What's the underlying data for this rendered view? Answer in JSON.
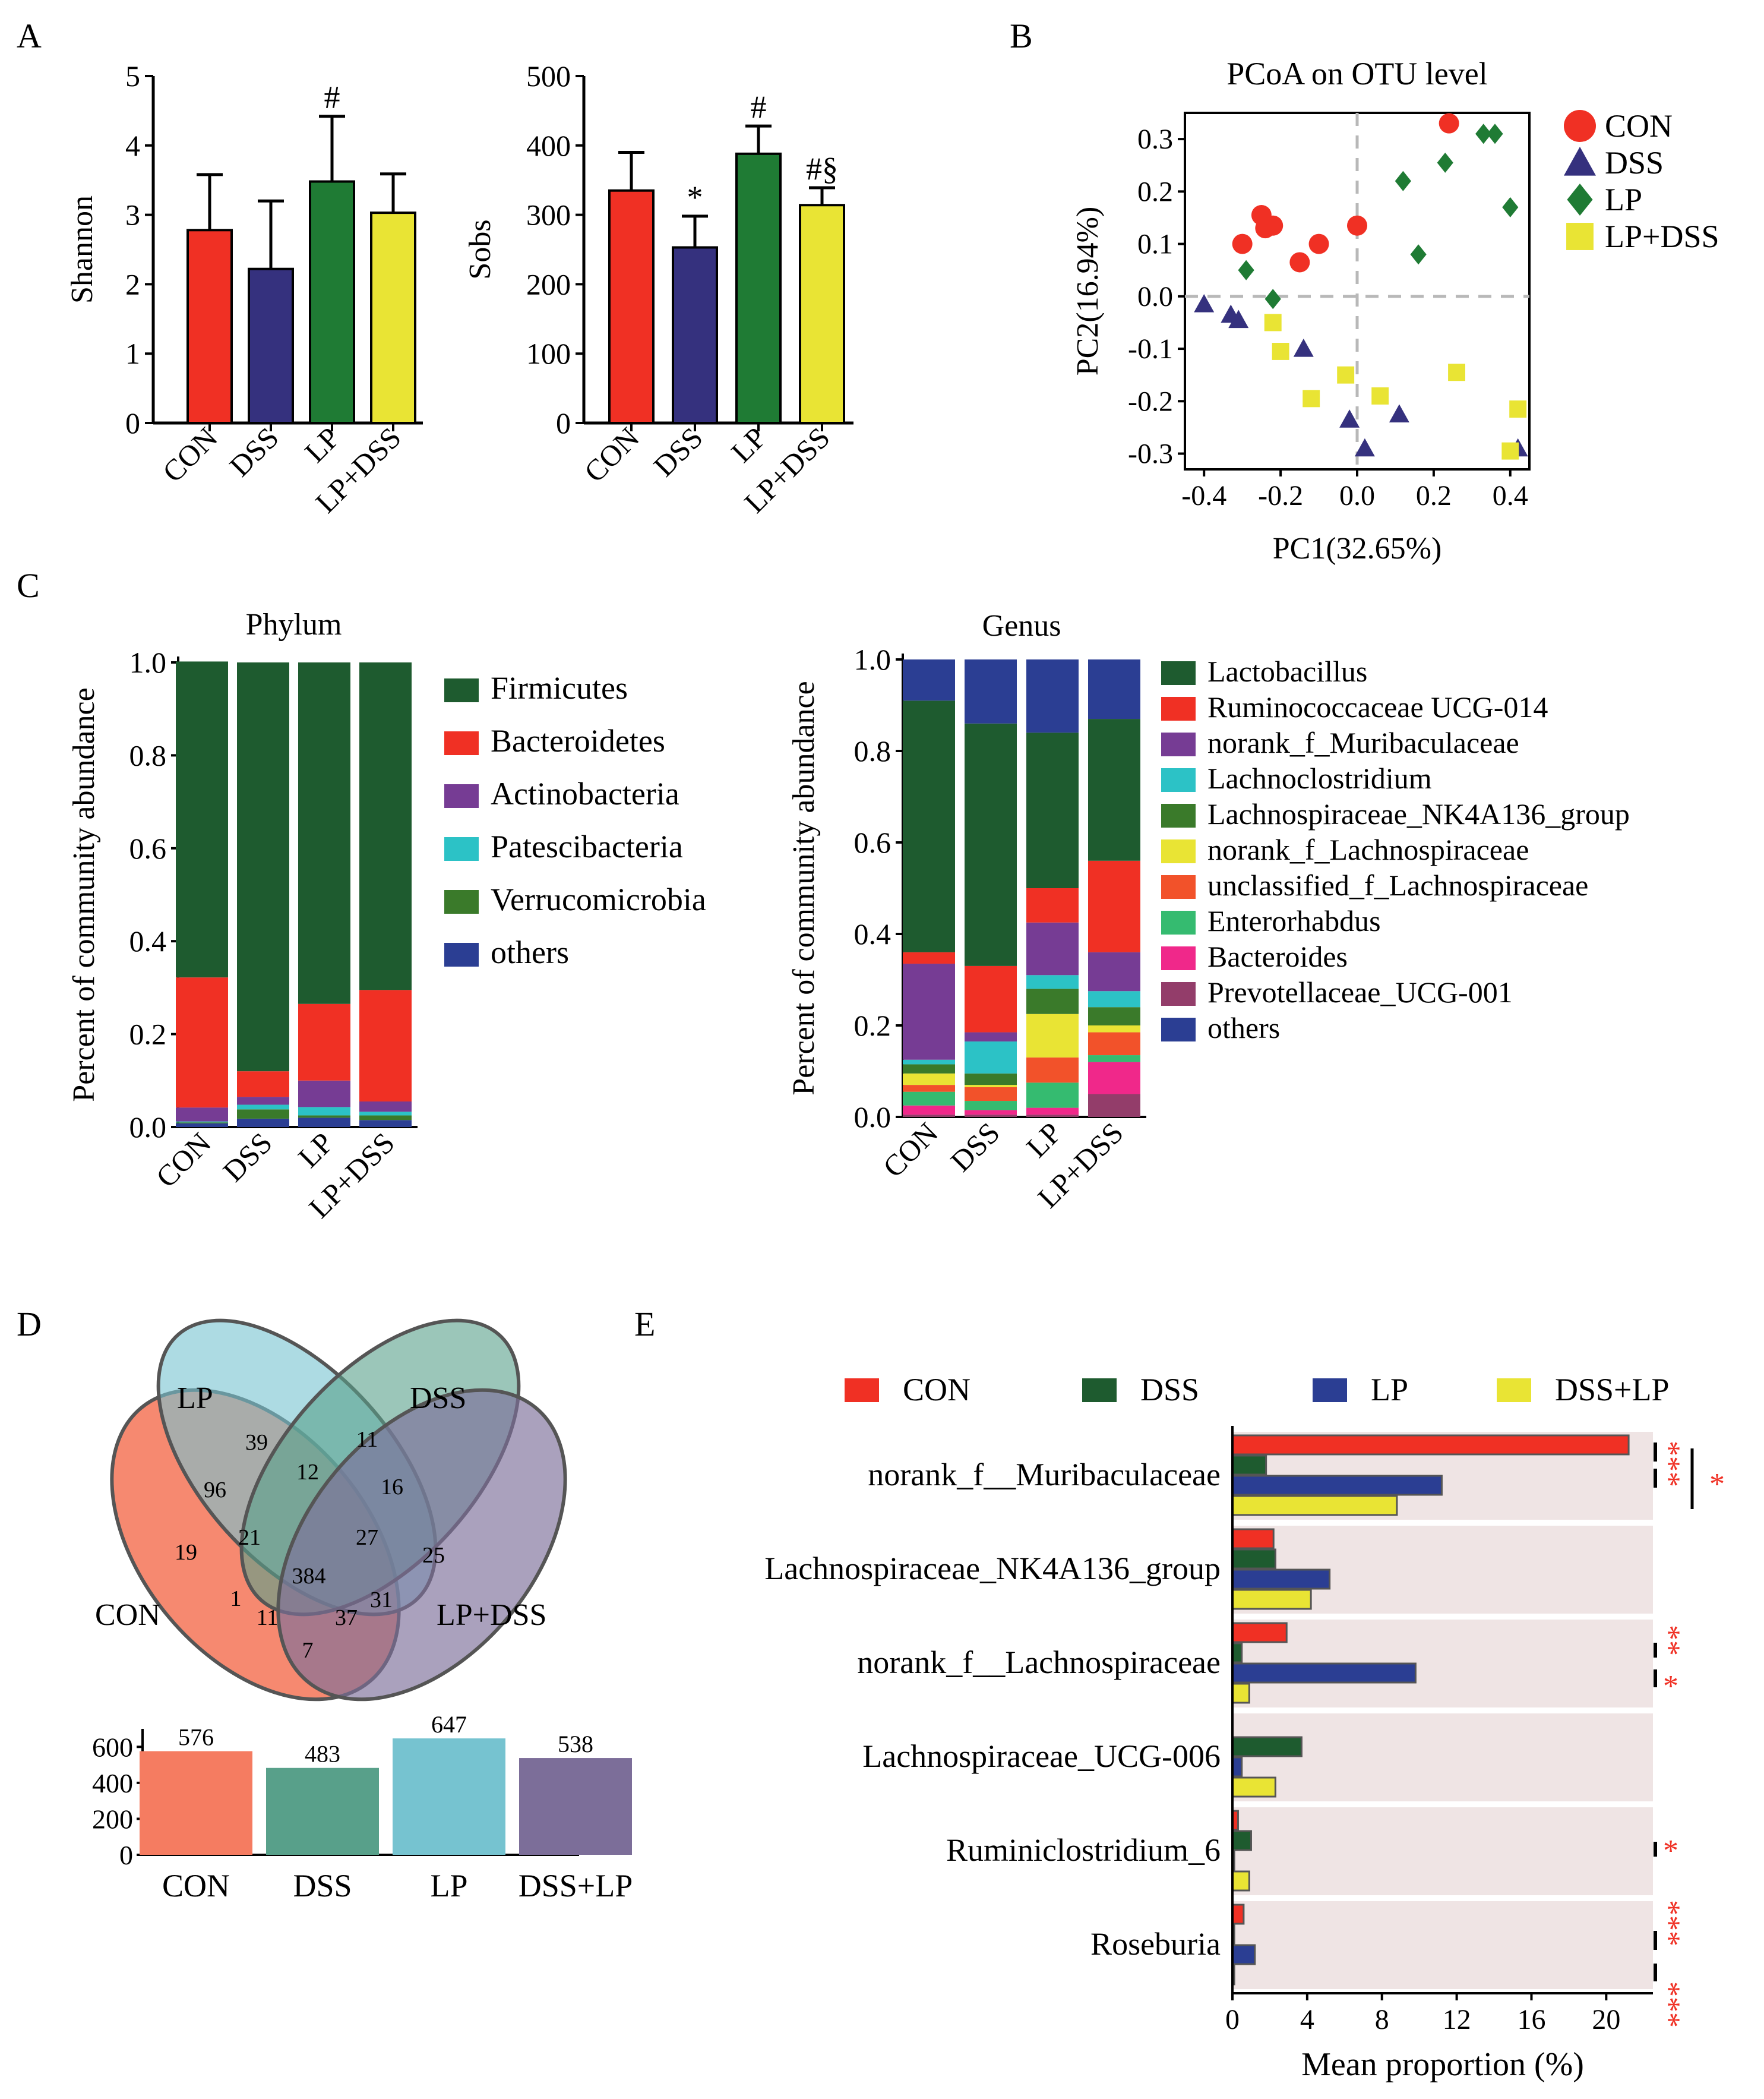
{
  "chart_data": [
    {
      "panel": "A",
      "type": "bar",
      "title": "",
      "xlabel": "",
      "ylabel": "Shannon",
      "ylim": [
        0,
        5
      ],
      "yticks": [
        "0",
        "1",
        "2",
        "3",
        "4",
        "5"
      ],
      "categories": [
        "CON",
        "DSS",
        "LP",
        "LP+DSS"
      ],
      "values": [
        2.78,
        2.22,
        3.48,
        3.03
      ],
      "errors": [
        0.8,
        0.98,
        0.94,
        0.56
      ],
      "annotations": [
        "",
        "",
        "#",
        ""
      ],
      "colors": [
        "#f03024",
        "#35317e",
        "#1f7b34",
        "#e9e434"
      ]
    },
    {
      "panel": "A",
      "type": "bar",
      "title": "",
      "xlabel": "",
      "ylabel": "Sobs",
      "ylim": [
        0,
        500
      ],
      "yticks": [
        "0",
        "100",
        "200",
        "300",
        "400",
        "500"
      ],
      "categories": [
        "CON",
        "DSS",
        "LP",
        "LP+DSS"
      ],
      "values": [
        335,
        253,
        388,
        314
      ],
      "errors": [
        55,
        45,
        40,
        25
      ],
      "annotations": [
        "",
        "*",
        "#",
        "#§"
      ],
      "colors": [
        "#f03024",
        "#35317e",
        "#1f7b34",
        "#e9e434"
      ]
    },
    {
      "panel": "B",
      "type": "scatter",
      "title": "PCoA on OTU level",
      "xlabel": "PC1(32.65%)",
      "ylabel": "PC2(16.94%)",
      "xlim": [
        -0.45,
        0.45
      ],
      "ylim": [
        -0.33,
        0.35
      ],
      "xticks": [
        "-0.4",
        "-0.2",
        "0.0",
        "0.2",
        "0.4"
      ],
      "yticks": [
        "0.3",
        "0.2",
        "0.1",
        "0.0",
        "-0.1",
        "-0.2",
        "-0.3"
      ],
      "legend_position": "right",
      "series": [
        {
          "name": "CON",
          "marker": "circle",
          "color": "#f03024",
          "points": [
            [
              0.24,
              0.33
            ],
            [
              -0.25,
              0.155
            ],
            [
              -0.22,
              0.135
            ],
            [
              -0.24,
              0.13
            ],
            [
              -0.3,
              0.1
            ],
            [
              -0.1,
              0.1
            ],
            [
              -0.15,
              0.065
            ],
            [
              0.0,
              0.135
            ]
          ]
        },
        {
          "name": "DSS",
          "marker": "triangle",
          "color": "#35317e",
          "points": [
            [
              -0.4,
              -0.015
            ],
            [
              -0.33,
              -0.035
            ],
            [
              -0.31,
              -0.045
            ],
            [
              -0.14,
              -0.1
            ],
            [
              -0.02,
              -0.235
            ],
            [
              0.02,
              -0.29
            ],
            [
              0.11,
              -0.225
            ],
            [
              0.42,
              -0.29
            ]
          ]
        },
        {
          "name": "LP",
          "marker": "diamond",
          "color": "#1f7b34",
          "points": [
            [
              0.33,
              0.31
            ],
            [
              0.36,
              0.31
            ],
            [
              0.23,
              0.255
            ],
            [
              0.12,
              0.22
            ],
            [
              0.4,
              0.17
            ],
            [
              0.16,
              0.08
            ],
            [
              -0.29,
              0.05
            ],
            [
              -0.22,
              -0.005
            ]
          ]
        },
        {
          "name": "LP+DSS",
          "marker": "square",
          "color": "#e9e434",
          "points": [
            [
              -0.22,
              -0.05
            ],
            [
              -0.2,
              -0.105
            ],
            [
              -0.03,
              -0.15
            ],
            [
              0.26,
              -0.145
            ],
            [
              0.06,
              -0.19
            ],
            [
              -0.12,
              -0.195
            ],
            [
              0.42,
              -0.215
            ],
            [
              0.4,
              -0.295
            ]
          ]
        }
      ]
    },
    {
      "panel": "C",
      "type": "bar",
      "stacked": true,
      "title": "Phylum",
      "xlabel": "",
      "ylabel": "Percent of community abundance",
      "ylim": [
        0,
        1
      ],
      "yticks": [
        "0.0",
        "0.2",
        "0.4",
        "0.6",
        "0.8",
        "1.0"
      ],
      "categories": [
        "CON",
        "DSS",
        "LP",
        "LP+DSS"
      ],
      "series": [
        {
          "name": "Firmicutes",
          "color": "#1e5b2f",
          "values": [
            0.68,
            0.88,
            0.735,
            0.705
          ]
        },
        {
          "name": "Bacteroidetes",
          "color": "#f03024",
          "values": [
            0.28,
            0.055,
            0.165,
            0.24
          ]
        },
        {
          "name": "Actinobacteria",
          "color": "#763c94",
          "values": [
            0.03,
            0.017,
            0.057,
            0.022
          ]
        },
        {
          "name": "Patescibacteria",
          "color": "#2cc2c6",
          "values": [
            0.002,
            0.01,
            0.018,
            0.008
          ]
        },
        {
          "name": "Verrucomicrobia",
          "color": "#3a7a2a",
          "values": [
            0.002,
            0.02,
            0.005,
            0.01
          ]
        },
        {
          "name": "others",
          "color": "#2b3e93",
          "values": [
            0.008,
            0.018,
            0.02,
            0.015
          ]
        }
      ]
    },
    {
      "panel": "C",
      "type": "bar",
      "stacked": true,
      "title": "Genus",
      "xlabel": "",
      "ylabel": "Percent of community abundance",
      "ylim": [
        0,
        1
      ],
      "yticks": [
        "0.0",
        "0.2",
        "0.4",
        "0.6",
        "0.8",
        "1.0"
      ],
      "categories": [
        "CON",
        "DSS",
        "LP",
        "LP+DSS"
      ],
      "series": [
        {
          "name": "Prevotellaceae_UCG-001",
          "color": "#933d6a",
          "values": [
            0.005,
            0.005,
            0.005,
            0.05
          ]
        },
        {
          "name": "Bacteroides",
          "color": "#f0288a",
          "values": [
            0.02,
            0.01,
            0.015,
            0.07
          ]
        },
        {
          "name": "Enterorhabdus",
          "color": "#35bb70",
          "values": [
            0.03,
            0.02,
            0.055,
            0.015
          ]
        },
        {
          "name": "unclassified_f_Lachnospiraceae",
          "color": "#f2522a",
          "values": [
            0.015,
            0.03,
            0.055,
            0.05
          ]
        },
        {
          "name": "norank_f_Lachnospiraceae",
          "color": "#e9e434",
          "values": [
            0.025,
            0.005,
            0.095,
            0.015
          ]
        },
        {
          "name": "Lachnospiraceae_NK4A136_group",
          "color": "#3a7a2a",
          "values": [
            0.02,
            0.025,
            0.055,
            0.04
          ]
        },
        {
          "name": "Lachnoclostridium",
          "color": "#2cc2c6",
          "values": [
            0.01,
            0.07,
            0.03,
            0.035
          ]
        },
        {
          "name": "norank_f_Muribaculaceae",
          "color": "#763c94",
          "values": [
            0.21,
            0.02,
            0.115,
            0.085
          ]
        },
        {
          "name": "Ruminococcaceae UCG-014",
          "color": "#f03024",
          "values": [
            0.025,
            0.145,
            0.075,
            0.2
          ]
        },
        {
          "name": "Lactobacillus",
          "color": "#1e5b2f",
          "values": [
            0.55,
            0.53,
            0.34,
            0.31
          ]
        },
        {
          "name": "others",
          "color": "#2b3e93",
          "values": [
            0.09,
            0.14,
            0.16,
            0.13
          ]
        }
      ],
      "legend_order": [
        "Lactobacillus",
        "Ruminococcaceae UCG-014",
        "norank_f_Muribaculaceae",
        "Lachnoclostridium",
        "Lachnospiraceae_NK4A136_group",
        "norank_f_Lachnospiraceae",
        "unclassified_f_Lachnospiraceae",
        "Enterorhabdus",
        "Bacteroides",
        "Prevotellaceae_UCG-001",
        "others"
      ]
    },
    {
      "panel": "D",
      "type": "table",
      "title": "Venn diagram of OTUs",
      "sets": [
        "LP",
        "DSS",
        "CON",
        "LP+DSS"
      ],
      "region_counts": [
        "39",
        "11",
        "12",
        "96",
        "16",
        "21",
        "27",
        "19",
        "384",
        "25",
        "1",
        "11",
        "37",
        "31",
        "7"
      ],
      "set_colors": [
        "#76c3d0",
        "#58a08a",
        "#f57c61",
        "#7c6e99"
      ]
    },
    {
      "panel": "D",
      "type": "bar",
      "title": "",
      "xlabel": "",
      "ylabel": "",
      "ylim": [
        0,
        700
      ],
      "yticks": [
        "0",
        "200",
        "400",
        "600"
      ],
      "categories": [
        "CON",
        "DSS",
        "LP",
        "DSS+LP"
      ],
      "values": [
        576,
        483,
        647,
        538
      ],
      "colors": [
        "#f57c61",
        "#58a08a",
        "#76c3d0",
        "#7c6e99"
      ]
    },
    {
      "panel": "E",
      "type": "bar",
      "orientation": "horizontal",
      "title": "",
      "xlabel": "Mean proportion (%)",
      "ylabel": "",
      "xlim": [
        0,
        22.5
      ],
      "xticks": [
        "0",
        "4",
        "8",
        "12",
        "16",
        "20"
      ],
      "legend_position": "top",
      "groups": [
        "norank_f__Muribaculaceae",
        "Lachnospiraceae_NK4A136_group",
        "norank_f__Lachnospiraceae",
        "Lachnospiraceae_UCG-006",
        "Ruminiclostridium_6",
        "Roseburia"
      ],
      "series": [
        {
          "name": "CON",
          "color": "#f03024",
          "values": [
            21.2,
            2.2,
            2.9,
            0.0,
            0.3,
            0.6
          ]
        },
        {
          "name": "DSS",
          "color": "#1e5b2f",
          "values": [
            1.8,
            2.3,
            0.5,
            3.7,
            1.0,
            0.1
          ]
        },
        {
          "name": "LP",
          "color": "#2b3e93",
          "values": [
            11.2,
            5.2,
            9.8,
            0.5,
            0.1,
            1.2
          ]
        },
        {
          "name": "DSS+LP",
          "color": "#e9e434",
          "values": [
            8.8,
            4.2,
            0.9,
            2.3,
            0.9,
            0.1
          ]
        }
      ],
      "significance": [
        "***  *",
        "",
        "** *",
        "",
        "*",
        "*** ***"
      ]
    }
  ],
  "panels": {
    "A": {
      "label": "A"
    },
    "B": {
      "label": "B"
    },
    "C": {
      "label": "C"
    },
    "D": {
      "label": "D"
    },
    "E": {
      "label": "E"
    }
  },
  "text": {
    "venn_labels": {
      "LP": "LP",
      "DSS": "DSS",
      "CON": "CON",
      "LPDSS": "LP+DSS"
    },
    "pcoa_legend": [
      "CON",
      "DSS",
      "LP",
      "LP+DSS"
    ],
    "e_legend": [
      "CON",
      "DSS",
      "LP",
      "DSS+LP"
    ],
    "sig": {
      "muri_left": "***",
      "muri_right": "*",
      "lach_1": "**",
      "lach_2": "*",
      "rumi": "*",
      "rose_1": "***",
      "rose_2": "***"
    }
  }
}
